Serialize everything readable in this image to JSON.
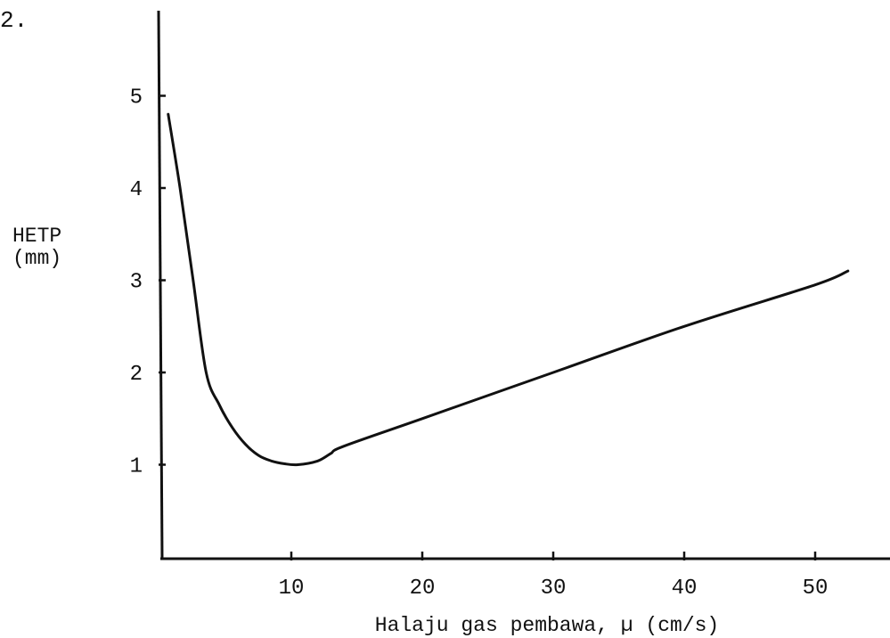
{
  "question_number": "2.",
  "chart_data": {
    "type": "line",
    "title": "",
    "xlabel": "Halaju gas pembawa, µ (cm/s)",
    "ylabel_line1": "HETP",
    "ylabel_line2": "(mm)",
    "x_ticks": [
      10,
      20,
      30,
      40,
      50
    ],
    "y_ticks": [
      1,
      2,
      3,
      4,
      5
    ],
    "xlim": [
      0,
      53
    ],
    "ylim": [
      0,
      5
    ],
    "grid": false,
    "series": [
      {
        "values": [
          {
            "x": 0.6,
            "y": 4.8
          },
          {
            "x": 1.5,
            "y": 4.0
          },
          {
            "x": 2.5,
            "y": 3.0
          },
          {
            "x": 3.5,
            "y": 2.0
          },
          {
            "x": 4.5,
            "y": 1.65
          },
          {
            "x": 5.5,
            "y": 1.4
          },
          {
            "x": 6.5,
            "y": 1.22
          },
          {
            "x": 7.5,
            "y": 1.1
          },
          {
            "x": 8.5,
            "y": 1.04
          },
          {
            "x": 9.5,
            "y": 1.01
          },
          {
            "x": 10.5,
            "y": 1.0
          },
          {
            "x": 12.0,
            "y": 1.04
          },
          {
            "x": 13.0,
            "y": 1.12
          },
          {
            "x": 14.0,
            "y": 1.2
          },
          {
            "x": 20.0,
            "y": 1.5
          },
          {
            "x": 30.0,
            "y": 2.0
          },
          {
            "x": 40.0,
            "y": 2.5
          },
          {
            "x": 50.0,
            "y": 2.95
          },
          {
            "x": 52.5,
            "y": 3.1
          }
        ]
      }
    ]
  }
}
